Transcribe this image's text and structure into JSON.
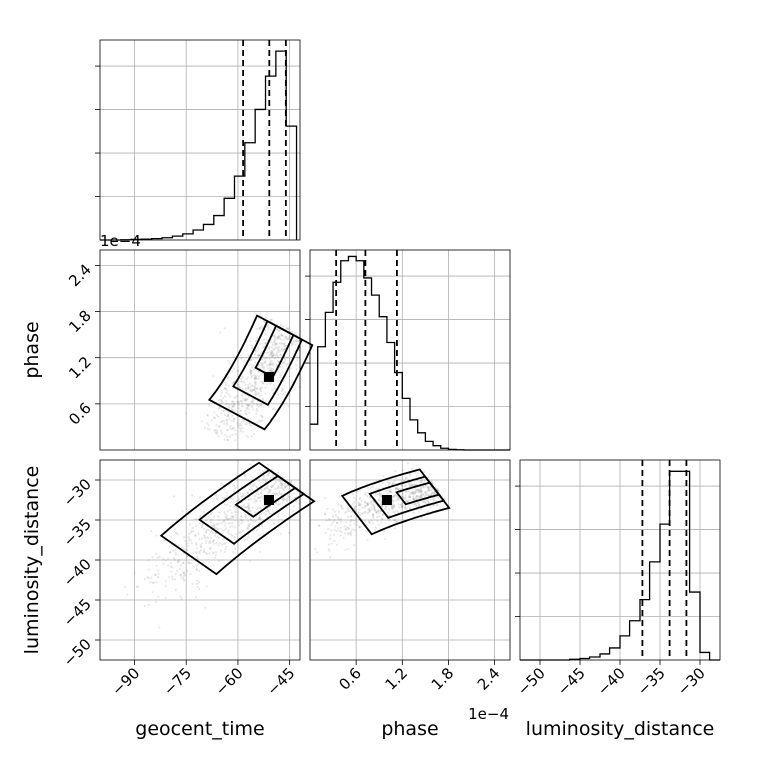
{
  "chart_data": {
    "type": "corner",
    "parameters": [
      "geocent_time",
      "phase",
      "luminosity_distance"
    ],
    "axes": {
      "geocent_time": {
        "lim": [
          -100,
          -42
        ],
        "ticks": [
          -90,
          -75,
          -60,
          -45
        ],
        "tick_labels": [
          "−90",
          "−75",
          "−60",
          "−45"
        ]
      },
      "phase": {
        "lim": [
          0.0,
          2.6
        ],
        "ticks": [
          0.6,
          1.2,
          1.8,
          2.4
        ],
        "tick_labels": [
          "0.6",
          "1.2",
          "1.8",
          "2.4"
        ],
        "offset_text": "1e−4"
      },
      "luminosity_distance": {
        "lim": [
          -52.5,
          -27.5
        ],
        "ticks": [
          -50,
          -45,
          -40,
          -35,
          -30
        ],
        "tick_labels": [
          "−50",
          "−45",
          "−40",
          "−35",
          "−30"
        ]
      }
    },
    "histograms": {
      "geocent_time": {
        "edges": [
          -100,
          -97,
          -94,
          -91,
          -88,
          -85,
          -82,
          -79,
          -76,
          -73,
          -70,
          -67,
          -64,
          -61,
          -58,
          -55,
          -52,
          -49,
          -46,
          -43
        ],
        "counts": [
          0,
          0,
          1,
          2,
          3,
          5,
          8,
          14,
          22,
          36,
          56,
          88,
          150,
          230,
          350,
          470,
          590,
          680,
          410,
          0
        ],
        "quantiles": [
          -58.5,
          -50.9,
          -46.1
        ],
        "ymax": 720
      },
      "phase": {
        "edges": [
          0.0,
          0.1,
          0.2,
          0.3,
          0.4,
          0.5,
          0.6,
          0.7,
          0.8,
          0.9,
          1.0,
          1.1,
          1.2,
          1.3,
          1.4,
          1.5,
          1.6,
          1.7,
          1.8,
          1.9,
          2.0,
          2.1,
          2.2,
          2.3,
          2.4,
          2.5,
          2.6
        ],
        "counts": [
          120,
          480,
          640,
          780,
          880,
          900,
          880,
          800,
          720,
          620,
          500,
          360,
          240,
          140,
          80,
          40,
          20,
          8,
          3,
          1,
          0,
          0,
          0,
          0,
          0,
          0
        ],
        "quantiles": [
          0.34,
          0.72,
          1.13
        ],
        "ymax": 930
      },
      "luminosity_distance": {
        "edges": [
          -52.5,
          -51.3,
          -50.0,
          -48.8,
          -47.5,
          -46.3,
          -45.0,
          -43.8,
          -42.5,
          -41.3,
          -40.0,
          -38.8,
          -37.5,
          -36.3,
          -35.0,
          -33.8,
          -32.5,
          -31.3,
          -30.0,
          -28.8,
          -27.5
        ],
        "counts": [
          0,
          0,
          0,
          0,
          0,
          1,
          2,
          4,
          8,
          16,
          32,
          52,
          80,
          130,
          180,
          250,
          250,
          90,
          10,
          0
        ],
        "quantiles": [
          -37.2,
          -33.8,
          -31.7
        ],
        "ymax": 265
      }
    },
    "density_peaks": {
      "phase_vs_geocent_time": {
        "x": -51,
        "y": 0.95
      },
      "luminosity_distance_vs_geocent_time": {
        "x": -51,
        "y": -32.5
      },
      "luminosity_distance_vs_phase": {
        "x": 1.0,
        "y": -32.5
      }
    },
    "grid": true
  }
}
